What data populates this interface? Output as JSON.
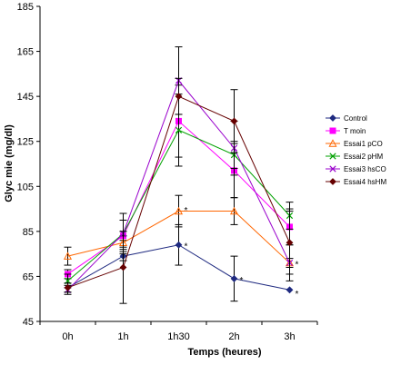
{
  "chart_data": {
    "type": "line",
    "title": "",
    "xlabel": "Temps (heures)",
    "ylabel": "Glyc mie (mg/dl)",
    "ylim": [
      45,
      185
    ],
    "yticks": [
      45,
      65,
      85,
      105,
      125,
      145,
      165,
      185
    ],
    "categories": [
      "0h",
      "1h",
      "1h30",
      "2h",
      "3h"
    ],
    "legend_position": "right",
    "series": [
      {
        "name": "Control",
        "color": "#1f2a80",
        "marker": "diamond",
        "values": [
          60,
          74,
          79,
          64,
          59
        ],
        "errors": [
          2,
          2,
          9,
          10,
          0
        ]
      },
      {
        "name": "T  moin",
        "color": "#ff00ff",
        "marker": "square",
        "values": [
          66,
          83,
          134,
          112,
          87
        ],
        "errors": [
          2,
          2,
          16,
          12,
          8
        ]
      },
      {
        "name": "Essai1 pCO",
        "color": "#ff6600",
        "marker": "triangle",
        "values": [
          74,
          80,
          94,
          94,
          71
        ],
        "errors": [
          4,
          3,
          7,
          6,
          2
        ]
      },
      {
        "name": "Essai2 pHM",
        "color": "#00a000",
        "marker": "x",
        "values": [
          63,
          84,
          130,
          119,
          92
        ],
        "errors": [
          3,
          6,
          16,
          6,
          6
        ]
      },
      {
        "name": "Essai3 hsCO",
        "color": "#9900cc",
        "marker": "x",
        "values": [
          59,
          84,
          152,
          122,
          71
        ],
        "errors": [
          2,
          9,
          15,
          12,
          8
        ]
      },
      {
        "name": "Essai4 hsHM",
        "color": "#660000",
        "marker": "diamond",
        "values": [
          60,
          69,
          145,
          134,
          80
        ],
        "errors": [
          2,
          16,
          8,
          14,
          14
        ]
      }
    ],
    "annotations": [
      {
        "text": "*",
        "category": "1h30",
        "y": 95
      },
      {
        "text": "*",
        "category": "1h30",
        "y": 79
      },
      {
        "text": "*",
        "category": "2h",
        "y": 64
      },
      {
        "text": "*",
        "category": "3h",
        "y": 71
      },
      {
        "text": "*",
        "category": "3h",
        "y": 58
      }
    ]
  }
}
